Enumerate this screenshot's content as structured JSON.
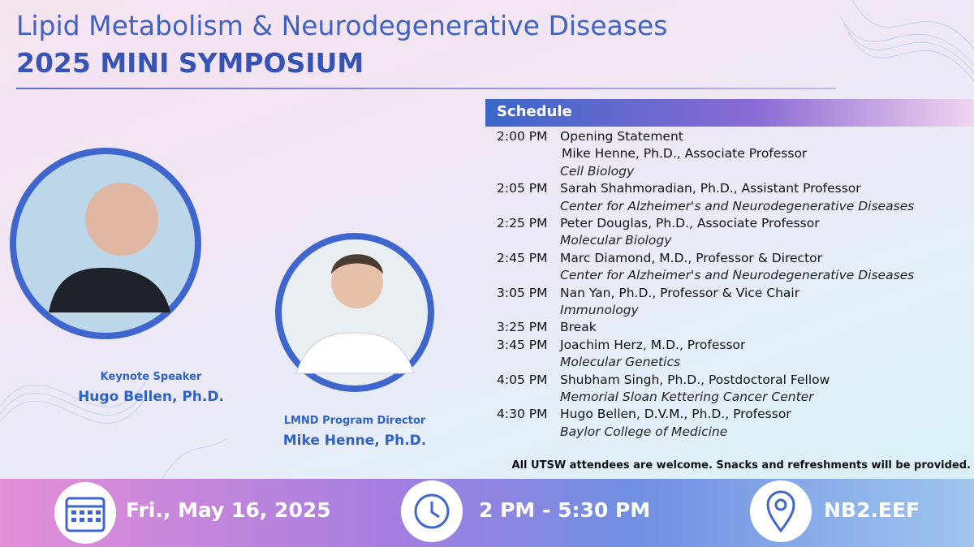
{
  "header": {
    "title": "Lipid Metabolism & Neurodegenerative Diseases",
    "subtitle": "2025 MINI SYMPOSIUM"
  },
  "speakers": [
    {
      "role": "Keynote Speaker",
      "name": "Hugo Bellen, Ph.D."
    },
    {
      "role": "LMND Program Director",
      "name": "Mike Henne, Ph.D."
    }
  ],
  "schedule": {
    "heading": "Schedule",
    "items": [
      {
        "time": "2:00 PM",
        "lines": [
          "Opening Statement",
          "Mike Henne, Ph.D., Associate Professor"
        ],
        "affiliation": "Cell Biology"
      },
      {
        "time": "2:05 PM",
        "lines": [
          "Sarah Shahmoradian, Ph.D., Assistant Professor"
        ],
        "affiliation": "Center for Alzheimer's and Neurodegenerative Diseases"
      },
      {
        "time": "2:25 PM",
        "lines": [
          "Peter Douglas, Ph.D., Associate Professor"
        ],
        "affiliation": "Molecular Biology"
      },
      {
        "time": "2:45 PM",
        "lines": [
          "Marc Diamond, M.D., Professor & Director"
        ],
        "affiliation": "Center for Alzheimer's and Neurodegenerative Diseases"
      },
      {
        "time": "3:05 PM",
        "lines": [
          "Nan Yan, Ph.D., Professor & Vice Chair"
        ],
        "affiliation": "Immunology"
      },
      {
        "time": "3:25 PM",
        "lines": [
          "Break"
        ]
      },
      {
        "time": "3:45 PM",
        "lines": [
          "Joachim Herz, M.D., Professor"
        ],
        "affiliation": "Molecular Genetics"
      },
      {
        "time": "4:05 PM",
        "lines": [
          "Shubham Singh, Ph.D., Postdoctoral Fellow"
        ],
        "affiliation": "Memorial Sloan Kettering Cancer Center"
      },
      {
        "time": "4:30 PM",
        "lines": [
          "Hugo Bellen, D.V.M., Ph.D., Professor"
        ],
        "affiliation": "Baylor College of Medicine"
      }
    ]
  },
  "note": "All UTSW attendees are welcome. Snacks and refreshments will be provided.",
  "footer": {
    "date": "Fri., May 16, 2025",
    "time": "2 PM - 5:30 PM",
    "location": "NB2.EEF"
  }
}
